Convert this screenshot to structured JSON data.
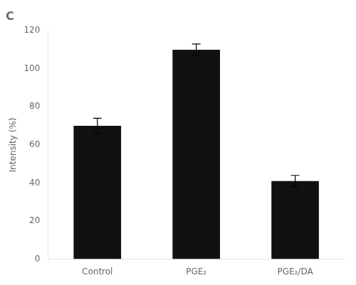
{
  "chart_data": {
    "type": "bar",
    "title": "C",
    "categories": [
      "Control",
      "PGE₂",
      "PGE₂/DA"
    ],
    "values": [
      70,
      110,
      41
    ],
    "errors": [
      4,
      3,
      3
    ],
    "color": "#111111",
    "ylabel": "Intensity (%)",
    "ylim": [
      0,
      120
    ],
    "yticks": [
      0,
      20,
      40,
      60,
      80,
      100,
      120
    ],
    "grid": false
  }
}
